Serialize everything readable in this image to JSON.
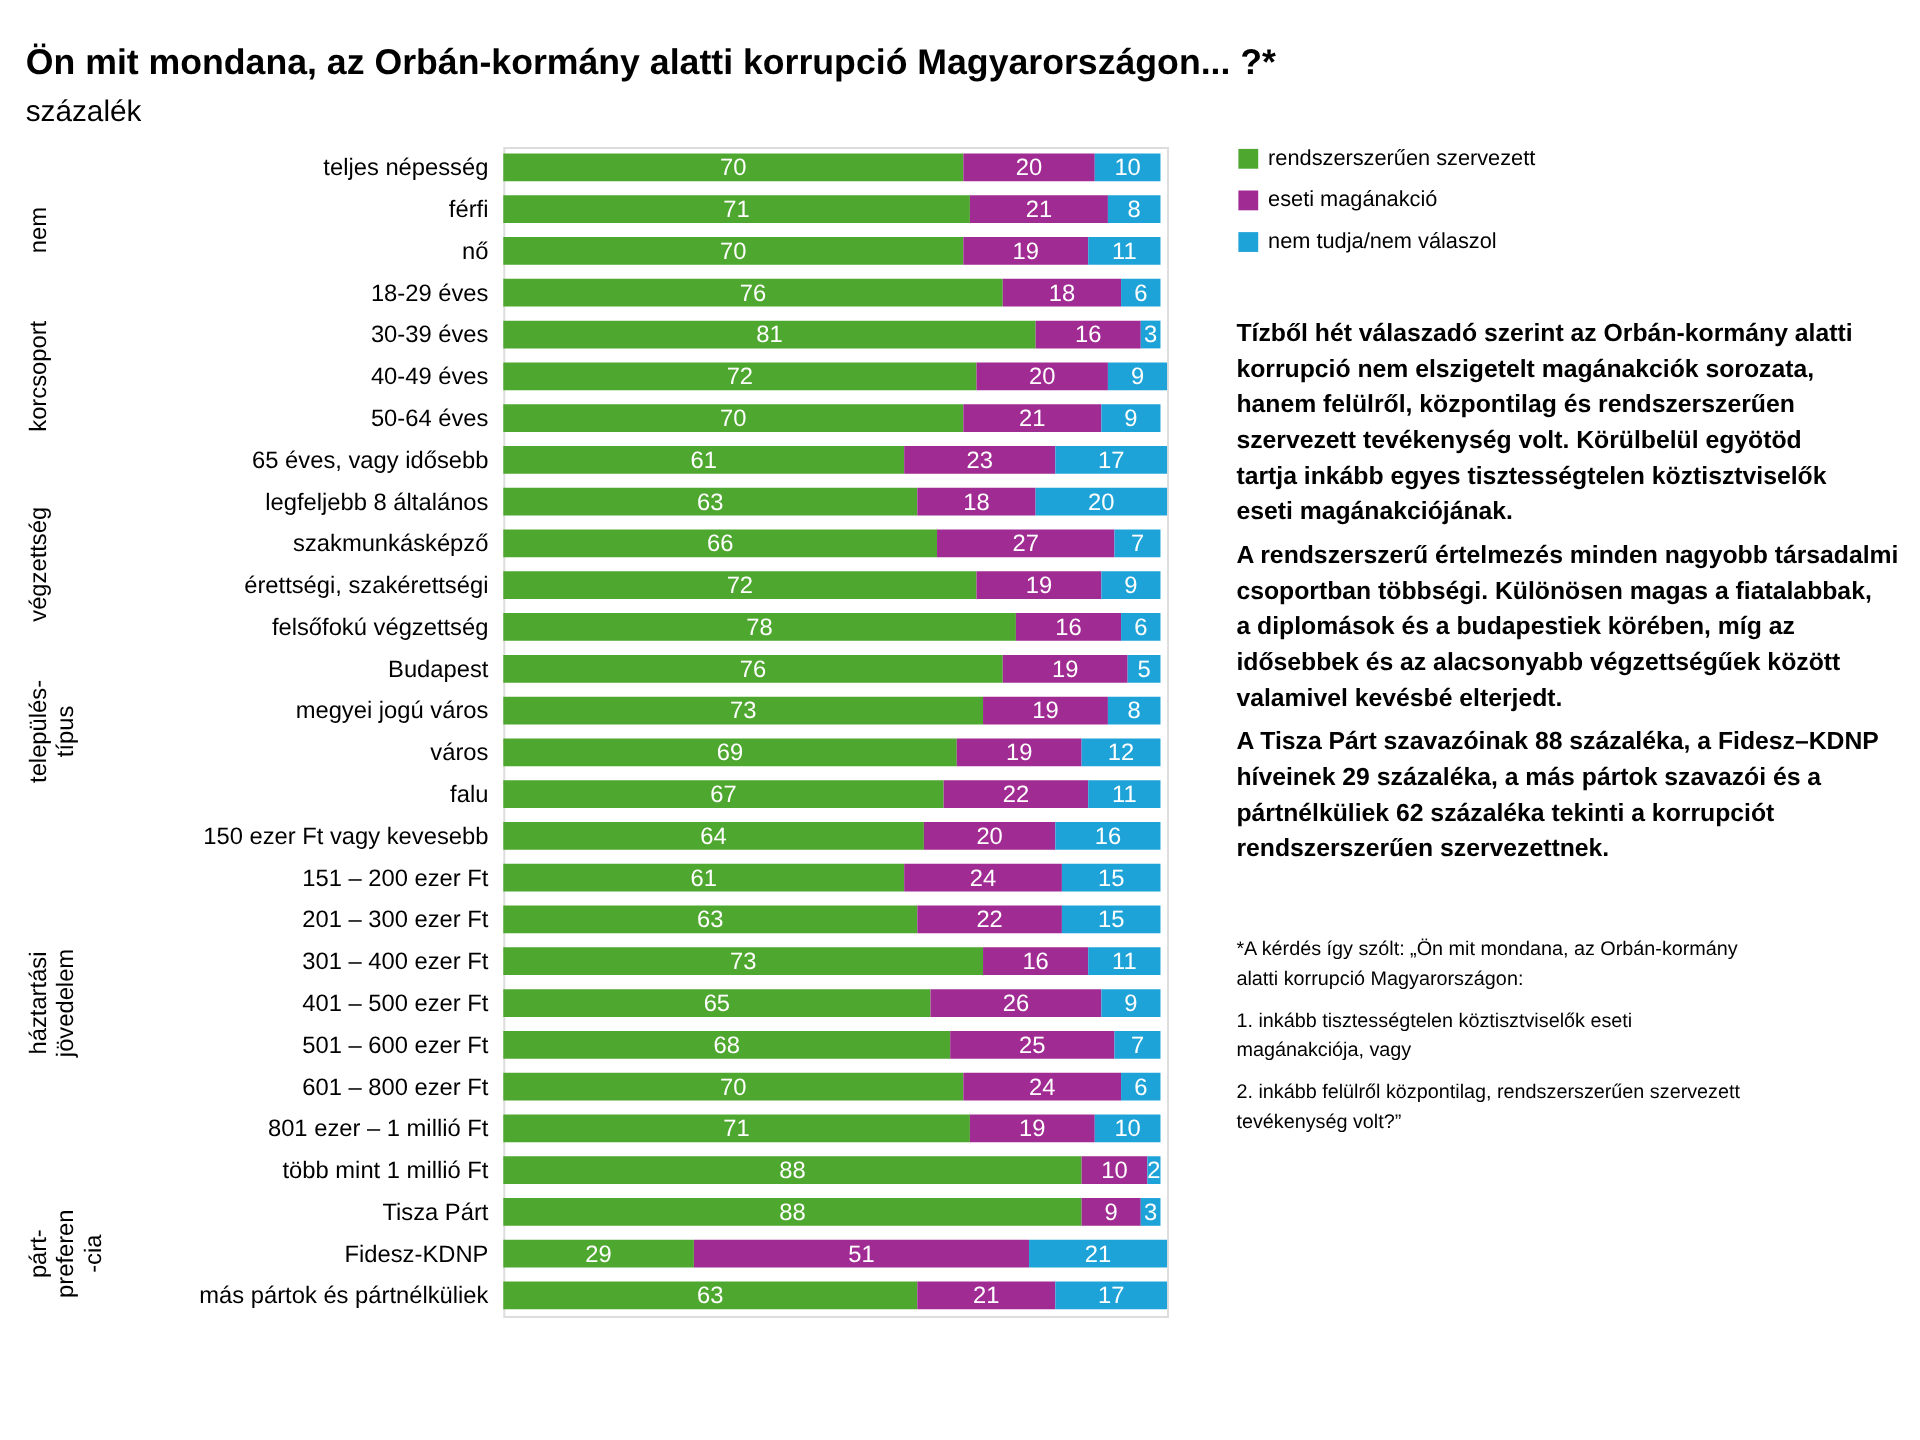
{
  "chart_data": {
    "type": "bar",
    "orientation": "horizontal",
    "stacked": true,
    "data_labels": true,
    "legend": "top right",
    "grid": false,
    "title": "Ön mit mondana, az Orbán-kormány alatti korrupció Magyarországon... ?*",
    "subtitle": "százalék",
    "categories": [
      "teljes népesség",
      "férfi",
      "nő",
      "18-29 éves",
      "30-39 éves",
      "40-49 éves",
      "50-64 éves",
      "65 éves, vagy idősebb",
      "legfeljebb 8 általános",
      "szakmunkásképző",
      "érettségi, szakérettségi",
      "felsőfokú végzettség",
      "Budapest",
      "megyei jogú város",
      "város",
      "falu",
      "150 ezer Ft vagy kevesebb",
      "151 – 200 ezer Ft",
      "201 – 300 ezer Ft",
      "301 – 400 ezer Ft",
      "401 – 500 ezer Ft",
      "501 – 600 ezer Ft",
      "601 – 800 ezer Ft",
      "801 ezer – 1 millió Ft",
      "több mint 1 millió Ft",
      "Tisza Párt",
      "Fidesz-KDNP",
      "más pártok és pártnélküliek"
    ],
    "series": [
      {
        "name": "rendszerszerűen szervezett",
        "color": "#4ea72e",
        "values": [
          70,
          71,
          70,
          76,
          81,
          72,
          70,
          61,
          63,
          66,
          72,
          78,
          76,
          73,
          69,
          67,
          64,
          61,
          63,
          73,
          65,
          68,
          70,
          71,
          88,
          88,
          29,
          63
        ]
      },
      {
        "name": "eseti magánakció",
        "color": "#a02b93",
        "values": [
          20,
          21,
          19,
          18,
          16,
          20,
          21,
          23,
          18,
          27,
          19,
          16,
          19,
          19,
          19,
          22,
          20,
          24,
          22,
          16,
          26,
          25,
          24,
          19,
          10,
          9,
          51,
          21
        ]
      },
      {
        "name": "nem tudja/nem válaszol",
        "color": "#1ea3d8",
        "values": [
          10,
          8,
          11,
          6,
          3,
          9,
          9,
          17,
          20,
          7,
          9,
          6,
          5,
          8,
          12,
          11,
          16,
          15,
          15,
          11,
          9,
          7,
          6,
          10,
          2,
          3,
          21,
          17
        ]
      }
    ],
    "annotations": [
      "nem",
      "korcsoport",
      "végzettség",
      "település-\ntípus",
      "háztartási\njövedelem",
      "párt-\npreferen\n-cia",
      "Tízből hét válaszadó szerint az Orbán-kormány alatti korrupció nem elszigetelt magánakciók sorozata, hanem felülről, központilag és rendszerszerűen szervezett tevékenység volt. Körülbelül egyötöd tartja inkább egyes tisztességtelen köztisztviselők eseti magánakciójának.",
      "A rendszerszerű értelmezés minden nagyobb társadalmi csoportban többségi. Különösen magas a fiatalabbak, a diplomások és a budapestiek körében, míg az idősebbek és az alacsonyabb végzettségűek között valamivel kevésbé elterjedt.",
      "A Tisza Párt szavazóinak 88 százaléka, a Fidesz–KDNP híveinek 29 százaléka, a más pártok szavazói és a pártnélküliek 62 százaléka tekinti a korrupciót rendszerszerűen szervezettnek.",
      "*A kérdés így szólt: „Ön mit mondana, az Orbán-kormány alatti korrupció Magyarországon:",
      "1. inkább tisztességtelen köztisztviselők eseti magánakciója, vagy",
      "2. inkább felülről központilag, rendszerszerűen szervezett tevékenység volt?”"
    ]
  }
}
